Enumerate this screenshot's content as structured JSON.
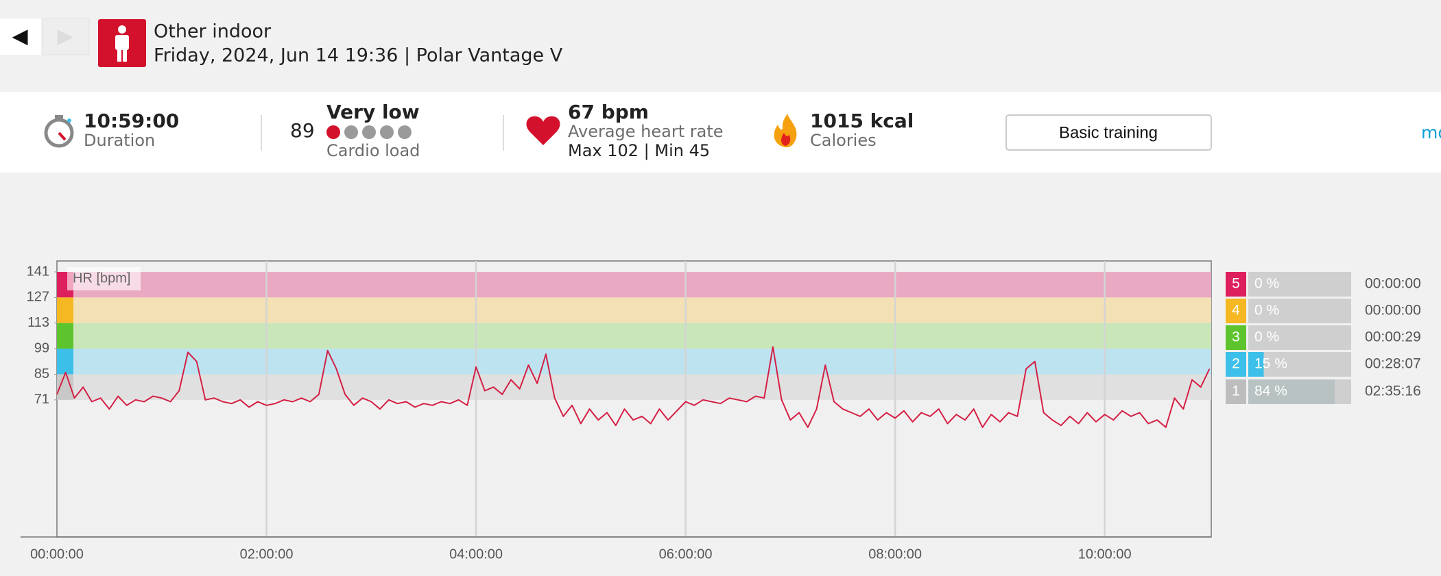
{
  "nav": {
    "back": "◀",
    "forward": "▶"
  },
  "header": {
    "title": "Other indoor",
    "subtitle": "Friday, 2024, Jun 14 19:36 | Polar Vantage V"
  },
  "stats": {
    "duration": "10:59:00",
    "duration_label": "Duration",
    "cardio_value": "89",
    "cardio_level": "Very low",
    "cardio_label": "Cardio load",
    "hr": "67 bpm",
    "hr_label": "Average heart rate",
    "hr_range": "Max 102  |  Min 45",
    "calories": "1015 kcal",
    "calories_label": "Calories",
    "button": "Basic training",
    "more": "mo"
  },
  "chart_data": {
    "type": "line",
    "y_label": "HR [bpm]",
    "x": [
      0,
      5,
      10,
      15,
      20,
      25,
      30,
      35,
      40,
      45,
      50,
      55,
      60,
      65,
      70,
      75,
      80,
      85,
      90,
      95,
      100,
      105,
      110,
      115,
      120,
      125,
      130,
      135,
      140,
      145,
      150,
      155,
      160,
      165,
      170,
      175,
      180,
      185,
      190,
      195,
      200,
      205,
      210,
      215,
      220,
      225,
      230,
      235,
      240,
      245,
      250,
      255,
      260,
      265,
      270,
      275,
      280,
      285,
      290,
      295,
      300,
      305,
      310,
      315,
      320,
      325,
      330,
      335,
      340,
      345,
      350,
      355,
      360,
      365,
      370,
      375,
      380,
      385,
      390,
      395,
      400,
      405,
      410,
      415,
      420,
      425,
      430,
      435,
      440,
      445,
      450,
      455,
      460,
      465,
      470,
      475,
      480,
      485,
      490,
      495,
      500,
      505,
      510,
      515,
      520,
      525,
      530,
      535,
      540,
      545,
      550,
      555,
      560,
      565,
      570,
      575,
      580,
      585,
      590,
      595,
      600,
      605,
      610,
      615,
      620,
      625,
      630,
      635,
      640,
      645,
      650,
      655,
      660
    ],
    "series": [
      {
        "name": "HR",
        "color": "#d41f44",
        "values": [
          74,
          86,
          72,
          78,
          70,
          72,
          66,
          73,
          68,
          71,
          70,
          73,
          72,
          70,
          76,
          97,
          92,
          71,
          72,
          70,
          69,
          71,
          67,
          70,
          68,
          69,
          71,
          70,
          72,
          70,
          74,
          98,
          88,
          74,
          68,
          72,
          70,
          66,
          71,
          69,
          70,
          67,
          69,
          68,
          70,
          69,
          71,
          68,
          89,
          76,
          78,
          74,
          82,
          77,
          90,
          80,
          96,
          72,
          62,
          68,
          58,
          66,
          60,
          64,
          57,
          66,
          60,
          62,
          58,
          66,
          60,
          65,
          70,
          68,
          71,
          70,
          69,
          72,
          71,
          70,
          73,
          72,
          100,
          71,
          60,
          64,
          56,
          66,
          90,
          70,
          66,
          64,
          62,
          66,
          60,
          64,
          61,
          65,
          59,
          64,
          62,
          66,
          58,
          63,
          60,
          66,
          56,
          63,
          59,
          64,
          62,
          88,
          92,
          64,
          60,
          57,
          62,
          58,
          64,
          59,
          63,
          60,
          65,
          62,
          64,
          58,
          60,
          56,
          72,
          66,
          82,
          78,
          88
        ]
      }
    ],
    "xlim": [
      0,
      661
    ],
    "xticks": [
      {
        "value": 0,
        "label": "00:00:00"
      },
      {
        "value": 120,
        "label": "02:00:00"
      },
      {
        "value": 240,
        "label": "04:00:00"
      },
      {
        "value": 360,
        "label": "06:00:00"
      },
      {
        "value": 480,
        "label": "08:00:00"
      },
      {
        "value": 600,
        "label": "10:00:00"
      }
    ],
    "ylim": [
      -4,
      147
    ],
    "yticks": [
      141,
      127,
      113,
      99,
      85,
      71
    ],
    "zone_band_colors": [
      "#eaa9c2",
      "#f3e0b5",
      "#c9e6b9",
      "#bde3f1",
      "#e0e0e0"
    ],
    "zone_strip_colors": [
      "#dd1f5e",
      "#f6b822",
      "#5ec42d",
      "#3cbfe8",
      "#c8c8c8"
    ],
    "grid": true
  },
  "zones": {
    "names": [
      "5",
      "4",
      "3",
      "2",
      "1"
    ],
    "values": [
      0,
      0,
      0,
      15,
      84
    ],
    "value_labels": [
      "0 %",
      "0 %",
      "0 %",
      "15 %",
      "84 %"
    ],
    "times": [
      "00:00:00",
      "00:00:00",
      "00:00:29",
      "00:28:07",
      "02:35:16"
    ],
    "colors": [
      "#dd1f5e",
      "#f6b822",
      "#5ec42d",
      "#3cbfe8",
      "#bdbdbd"
    ]
  }
}
